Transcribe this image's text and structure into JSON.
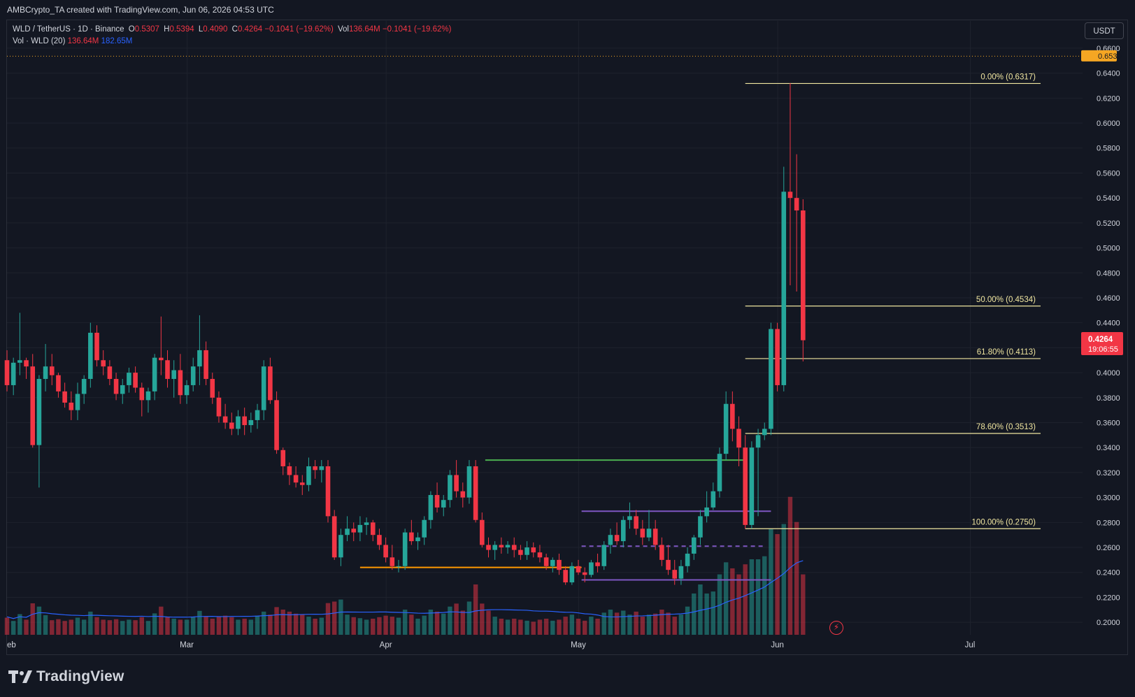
{
  "header": {
    "attribution": "AMBCrypto_TA created with TradingView.com, Jun 06, 2026 04:53 UTC"
  },
  "legend": {
    "symbol": "WLD / TetherUS · 1D · Binance",
    "open_label": "O",
    "open": "0.5307",
    "high_label": "H",
    "high": "0.5394",
    "low_label": "L",
    "low": "0.4090",
    "close_label": "C",
    "close": "0.4264",
    "change": "−0.1041 (−19.62%)",
    "vol_label": "Vol",
    "vol": "136.64M",
    "vol_change": "−0.1041 (−19.62%)",
    "vol_ma_label": "Vol · WLD (20)",
    "vol_ma_value": "136.64M",
    "vol_ma_avg": "182.65M"
  },
  "currency_button": "USDT",
  "brand": "TradingView",
  "colors": {
    "up": "#26a69a",
    "down": "#f23645",
    "grid": "#1e222d",
    "text": "#d1d4dc",
    "fib": "#f0e6a0",
    "green_level": "#4caf50",
    "purple_level": "#7e57c2",
    "orange_level": "#ff9800",
    "vol_ma": "#2962ff",
    "top_label": "#f5a623"
  },
  "chart_data": {
    "type": "candlestick",
    "y_axis": {
      "min": 0.19,
      "max": 0.665,
      "ticks": [
        "0.2000",
        "0.2200",
        "0.2400",
        "0.2600",
        "0.2800",
        "0.3000",
        "0.3200",
        "0.3400",
        "0.3600",
        "0.3800",
        "0.4000",
        "0.4200",
        "0.4400",
        "0.4600",
        "0.4800",
        "0.5000",
        "0.5200",
        "0.5400",
        "0.5600",
        "0.5800",
        "0.6000",
        "0.6200",
        "0.6400",
        "0.6600"
      ],
      "top_marker": "0.6539",
      "last_price": "0.4264",
      "countdown": "19:06:55"
    },
    "x_axis": {
      "labels": [
        {
          "text": "eb",
          "day": 0
        },
        {
          "text": "Mar",
          "day": 28
        },
        {
          "text": "Apr",
          "day": 59
        },
        {
          "text": "May",
          "day": 89
        },
        {
          "text": "Jun",
          "day": 120
        },
        {
          "text": "Jul",
          "day": 150
        }
      ],
      "day_range": [
        0,
        167
      ]
    },
    "fib_levels": [
      {
        "label": "0.00% (0.6317)",
        "value": 0.6317
      },
      {
        "label": "50.00% (0.4534)",
        "value": 0.4534
      },
      {
        "label": "61.80% (0.4113)",
        "value": 0.4113
      },
      {
        "label": "78.60% (0.3513)",
        "value": 0.3513
      },
      {
        "label": "100.00% (0.2750)",
        "value": 0.275
      }
    ],
    "fib_day_range": [
      115,
      161
    ],
    "levels": [
      {
        "kind": "green",
        "value": 0.33,
        "from_day": 74.5,
        "to_day": 115
      },
      {
        "kind": "purple",
        "value": 0.289,
        "from_day": 89.5,
        "to_day": 119
      },
      {
        "kind": "purple-dashed",
        "value": 0.261,
        "from_day": 89.5,
        "to_day": 118
      },
      {
        "kind": "purple",
        "value": 0.234,
        "from_day": 89.5,
        "to_day": 119
      },
      {
        "kind": "orange",
        "value": 0.244,
        "from_day": 55,
        "to_day": 89.5
      }
    ],
    "candles": [
      [
        0.41,
        0.418,
        0.385,
        0.39,
        68
      ],
      [
        0.39,
        0.412,
        0.382,
        0.408,
        55
      ],
      [
        0.408,
        0.448,
        0.398,
        0.41,
        82
      ],
      [
        0.41,
        0.412,
        0.395,
        0.405,
        60
      ],
      [
        0.405,
        0.415,
        0.34,
        0.342,
        125
      ],
      [
        0.342,
        0.398,
        0.308,
        0.395,
        112
      ],
      [
        0.395,
        0.423,
        0.385,
        0.405,
        78
      ],
      [
        0.405,
        0.415,
        0.39,
        0.398,
        58
      ],
      [
        0.398,
        0.4,
        0.38,
        0.385,
        62
      ],
      [
        0.385,
        0.392,
        0.372,
        0.376,
        55
      ],
      [
        0.376,
        0.385,
        0.362,
        0.37,
        60
      ],
      [
        0.37,
        0.392,
        0.362,
        0.383,
        68
      ],
      [
        0.383,
        0.398,
        0.375,
        0.395,
        60
      ],
      [
        0.395,
        0.44,
        0.388,
        0.432,
        92
      ],
      [
        0.432,
        0.438,
        0.405,
        0.41,
        70
      ],
      [
        0.41,
        0.418,
        0.398,
        0.405,
        60
      ],
      [
        0.405,
        0.41,
        0.39,
        0.395,
        58
      ],
      [
        0.395,
        0.4,
        0.378,
        0.383,
        62
      ],
      [
        0.383,
        0.395,
        0.375,
        0.39,
        55
      ],
      [
        0.39,
        0.404,
        0.384,
        0.4,
        60
      ],
      [
        0.4,
        0.405,
        0.384,
        0.388,
        58
      ],
      [
        0.388,
        0.392,
        0.365,
        0.378,
        70
      ],
      [
        0.378,
        0.388,
        0.368,
        0.385,
        55
      ],
      [
        0.385,
        0.415,
        0.378,
        0.412,
        85
      ],
      [
        0.412,
        0.445,
        0.398,
        0.41,
        112
      ],
      [
        0.41,
        0.418,
        0.388,
        0.395,
        70
      ],
      [
        0.395,
        0.41,
        0.38,
        0.402,
        64
      ],
      [
        0.402,
        0.415,
        0.375,
        0.382,
        60
      ],
      [
        0.382,
        0.394,
        0.375,
        0.39,
        60
      ],
      [
        0.39,
        0.412,
        0.385,
        0.405,
        72
      ],
      [
        0.405,
        0.446,
        0.39,
        0.418,
        95
      ],
      [
        0.418,
        0.425,
        0.39,
        0.395,
        72
      ],
      [
        0.395,
        0.4,
        0.375,
        0.38,
        64
      ],
      [
        0.38,
        0.385,
        0.36,
        0.365,
        72
      ],
      [
        0.365,
        0.375,
        0.355,
        0.36,
        76
      ],
      [
        0.36,
        0.368,
        0.35,
        0.355,
        70
      ],
      [
        0.355,
        0.37,
        0.35,
        0.365,
        60
      ],
      [
        0.365,
        0.372,
        0.35,
        0.358,
        64
      ],
      [
        0.358,
        0.368,
        0.352,
        0.362,
        60
      ],
      [
        0.362,
        0.375,
        0.355,
        0.37,
        76
      ],
      [
        0.37,
        0.41,
        0.362,
        0.405,
        92
      ],
      [
        0.405,
        0.412,
        0.375,
        0.378,
        80
      ],
      [
        0.378,
        0.385,
        0.335,
        0.338,
        110
      ],
      [
        0.338,
        0.34,
        0.318,
        0.325,
        100
      ],
      [
        0.325,
        0.328,
        0.31,
        0.318,
        92
      ],
      [
        0.318,
        0.325,
        0.308,
        0.312,
        84
      ],
      [
        0.312,
        0.318,
        0.302,
        0.31,
        80
      ],
      [
        0.31,
        0.332,
        0.305,
        0.325,
        72
      ],
      [
        0.325,
        0.33,
        0.315,
        0.322,
        64
      ],
      [
        0.322,
        0.33,
        0.312,
        0.325,
        68
      ],
      [
        0.325,
        0.33,
        0.28,
        0.285,
        126
      ],
      [
        0.285,
        0.29,
        0.25,
        0.252,
        132
      ],
      [
        0.252,
        0.275,
        0.245,
        0.27,
        140
      ],
      [
        0.27,
        0.285,
        0.265,
        0.275,
        80
      ],
      [
        0.275,
        0.28,
        0.265,
        0.272,
        70
      ],
      [
        0.272,
        0.285,
        0.265,
        0.278,
        66
      ],
      [
        0.278,
        0.284,
        0.27,
        0.28,
        60
      ],
      [
        0.28,
        0.282,
        0.265,
        0.27,
        64
      ],
      [
        0.27,
        0.275,
        0.258,
        0.262,
        70
      ],
      [
        0.262,
        0.268,
        0.248,
        0.252,
        76
      ],
      [
        0.252,
        0.262,
        0.242,
        0.245,
        72
      ],
      [
        0.245,
        0.25,
        0.24,
        0.245,
        68
      ],
      [
        0.245,
        0.275,
        0.242,
        0.272,
        100
      ],
      [
        0.272,
        0.282,
        0.262,
        0.265,
        80
      ],
      [
        0.265,
        0.272,
        0.258,
        0.268,
        64
      ],
      [
        0.268,
        0.285,
        0.262,
        0.282,
        76
      ],
      [
        0.282,
        0.305,
        0.275,
        0.302,
        100
      ],
      [
        0.302,
        0.312,
        0.288,
        0.292,
        92
      ],
      [
        0.292,
        0.302,
        0.285,
        0.298,
        84
      ],
      [
        0.298,
        0.322,
        0.292,
        0.318,
        112
      ],
      [
        0.318,
        0.33,
        0.3,
        0.305,
        124
      ],
      [
        0.305,
        0.312,
        0.292,
        0.3,
        96
      ],
      [
        0.3,
        0.33,
        0.295,
        0.325,
        132
      ],
      [
        0.325,
        0.33,
        0.28,
        0.282,
        200
      ],
      [
        0.282,
        0.288,
        0.26,
        0.262,
        124
      ],
      [
        0.262,
        0.268,
        0.252,
        0.258,
        96
      ],
      [
        0.258,
        0.265,
        0.25,
        0.262,
        72
      ],
      [
        0.262,
        0.268,
        0.255,
        0.26,
        64
      ],
      [
        0.26,
        0.265,
        0.255,
        0.262,
        60
      ],
      [
        0.262,
        0.268,
        0.252,
        0.258,
        64
      ],
      [
        0.258,
        0.262,
        0.25,
        0.254,
        60
      ],
      [
        0.254,
        0.265,
        0.25,
        0.26,
        56
      ],
      [
        0.26,
        0.264,
        0.252,
        0.256,
        52
      ],
      [
        0.256,
        0.262,
        0.248,
        0.252,
        60
      ],
      [
        0.252,
        0.255,
        0.242,
        0.245,
        64
      ],
      [
        0.245,
        0.252,
        0.24,
        0.25,
        56
      ],
      [
        0.25,
        0.255,
        0.238,
        0.242,
        60
      ],
      [
        0.242,
        0.245,
        0.23,
        0.232,
        72
      ],
      [
        0.232,
        0.248,
        0.23,
        0.245,
        80
      ],
      [
        0.245,
        0.25,
        0.238,
        0.24,
        64
      ],
      [
        0.24,
        0.244,
        0.232,
        0.238,
        56
      ],
      [
        0.238,
        0.25,
        0.236,
        0.248,
        72
      ],
      [
        0.248,
        0.255,
        0.24,
        0.245,
        64
      ],
      [
        0.245,
        0.265,
        0.242,
        0.262,
        88
      ],
      [
        0.262,
        0.275,
        0.255,
        0.27,
        100
      ],
      [
        0.27,
        0.28,
        0.262,
        0.265,
        88
      ],
      [
        0.265,
        0.285,
        0.26,
        0.282,
        96
      ],
      [
        0.282,
        0.296,
        0.275,
        0.285,
        80
      ],
      [
        0.285,
        0.29,
        0.27,
        0.275,
        92
      ],
      [
        0.275,
        0.282,
        0.262,
        0.268,
        72
      ],
      [
        0.268,
        0.29,
        0.265,
        0.275,
        80
      ],
      [
        0.275,
        0.282,
        0.258,
        0.262,
        84
      ],
      [
        0.262,
        0.268,
        0.245,
        0.25,
        100
      ],
      [
        0.25,
        0.262,
        0.238,
        0.242,
        88
      ],
      [
        0.242,
        0.25,
        0.23,
        0.235,
        72
      ],
      [
        0.235,
        0.25,
        0.23,
        0.245,
        80
      ],
      [
        0.245,
        0.26,
        0.24,
        0.255,
        112
      ],
      [
        0.255,
        0.27,
        0.25,
        0.268,
        164
      ],
      [
        0.268,
        0.29,
        0.262,
        0.285,
        200
      ],
      [
        0.285,
        0.305,
        0.28,
        0.292,
        164
      ],
      [
        0.292,
        0.312,
        0.29,
        0.305,
        172
      ],
      [
        0.305,
        0.34,
        0.3,
        0.335,
        240
      ],
      [
        0.335,
        0.385,
        0.33,
        0.375,
        288
      ],
      [
        0.375,
        0.385,
        0.345,
        0.355,
        264
      ],
      [
        0.355,
        0.365,
        0.325,
        0.34,
        240
      ],
      [
        0.34,
        0.35,
        0.275,
        0.278,
        280
      ],
      [
        0.278,
        0.345,
        0.275,
        0.34,
        300
      ],
      [
        0.34,
        0.355,
        0.285,
        0.35,
        300
      ],
      [
        0.35,
        0.36,
        0.346,
        0.355,
        312
      ],
      [
        0.355,
        0.44,
        0.35,
        0.435,
        420
      ],
      [
        0.435,
        0.44,
        0.385,
        0.39,
        400
      ],
      [
        0.39,
        0.565,
        0.385,
        0.545,
        440
      ],
      [
        0.545,
        0.632,
        0.47,
        0.54,
        548
      ],
      [
        0.54,
        0.575,
        0.465,
        0.53,
        448
      ],
      [
        0.53,
        0.539,
        0.409,
        0.426,
        240
      ]
    ]
  }
}
